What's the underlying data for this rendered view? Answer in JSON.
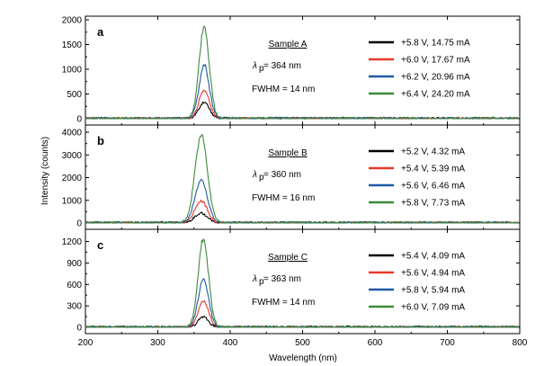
{
  "chart_data": {
    "type": "line",
    "xlabel": "Wavelength (nm)",
    "ylabel": "Intensity (counts)",
    "xlim": [
      200,
      800
    ],
    "xticks": [
      200,
      300,
      400,
      500,
      600,
      700,
      800
    ],
    "grid": false,
    "legend_position": "top-right",
    "panels": [
      {
        "id": "a",
        "sample_label": "Sample A",
        "peak_label": "= 364 nm",
        "fwhm_label": "FWHM = 14 nm",
        "ylim": [
          0,
          2000
        ],
        "yticks": [
          0,
          500,
          1000,
          1500,
          2000
        ],
        "peak_wavelength": 364,
        "series": [
          {
            "name": "+5.8 V, 14.75 mA",
            "color": "#000000",
            "peak": 330
          },
          {
            "name": "+6.0 V, 17.67 mA",
            "color": "#e8392a",
            "peak": 580
          },
          {
            "name": "+6.2 V, 20.96 mA",
            "color": "#1f5aa6",
            "peak": 1070
          },
          {
            "name": "+6.4 V, 24.20 mA",
            "color": "#3c8c3a",
            "peak": 1840
          }
        ]
      },
      {
        "id": "b",
        "sample_label": "Sample B",
        "peak_label": "= 360 nm",
        "fwhm_label": "FWHM = 16 nm",
        "ylim": [
          0,
          4200
        ],
        "yticks": [
          0,
          1000,
          2000,
          3000,
          4000
        ],
        "peak_wavelength": 360,
        "series": [
          {
            "name": "+5.2 V, 4.32 mA",
            "color": "#000000",
            "peak": 420
          },
          {
            "name": "+5.4 V, 5.39 mA",
            "color": "#e8392a",
            "peak": 950
          },
          {
            "name": "+5.6 V, 6.46 mA",
            "color": "#1f5aa6",
            "peak": 1880
          },
          {
            "name": "+5.8 V, 7.73 mA",
            "color": "#3c8c3a",
            "peak": 3850
          }
        ]
      },
      {
        "id": "c",
        "sample_label": "Sample C",
        "peak_label": "= 363 nm",
        "fwhm_label": "FWHM = 14 nm",
        "ylim": [
          0,
          1320
        ],
        "yticks": [
          0,
          300,
          600,
          900,
          1200
        ],
        "peak_wavelength": 363,
        "series": [
          {
            "name": "+5.4 V, 4.09 mA",
            "color": "#000000",
            "peak": 140
          },
          {
            "name": "+5.6 V, 4.94 mA",
            "color": "#e8392a",
            "peak": 360
          },
          {
            "name": "+5.8 V, 5.94 mA",
            "color": "#1f5aa6",
            "peak": 670
          },
          {
            "name": "+6.0 V, 7.09 mA",
            "color": "#3c8c3a",
            "peak": 1240
          }
        ]
      }
    ]
  }
}
